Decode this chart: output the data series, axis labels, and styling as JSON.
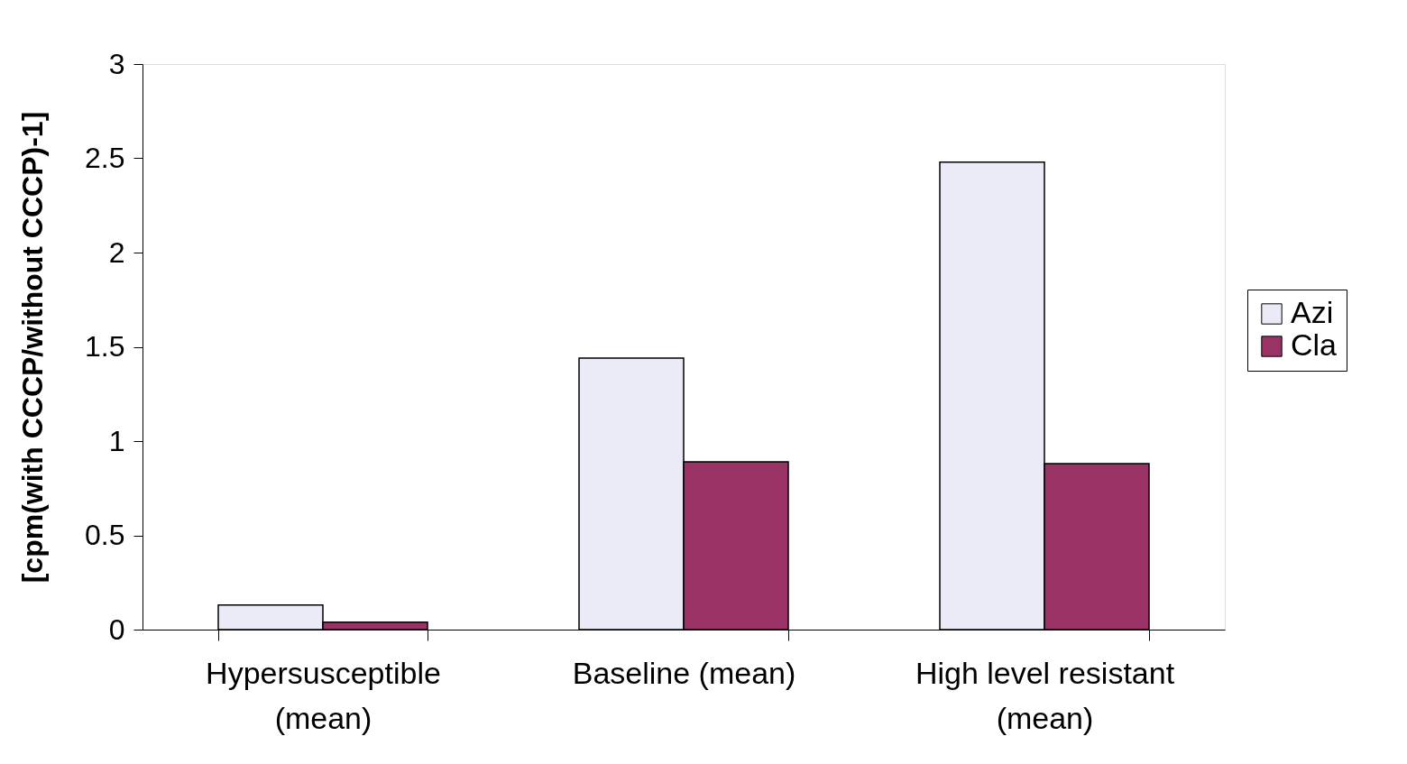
{
  "chart_data": {
    "type": "bar",
    "ylabel": "[cpm(with CCCP/without CCCP)-1]",
    "categories": [
      "Hypersusceptible (mean)",
      "Baseline (mean)",
      "High level resistant (mean)"
    ],
    "series": [
      {
        "name": "Azi",
        "color": "#ebebf7",
        "values": [
          0.13,
          1.44,
          2.48
        ]
      },
      {
        "name": "Cla",
        "color": "#993366",
        "values": [
          0.04,
          0.89,
          0.88
        ]
      }
    ],
    "ylim": [
      0,
      3
    ],
    "yticks": [
      0,
      0.5,
      1,
      1.5,
      2,
      2.5,
      3
    ],
    "grid": false,
    "legend": "right"
  }
}
